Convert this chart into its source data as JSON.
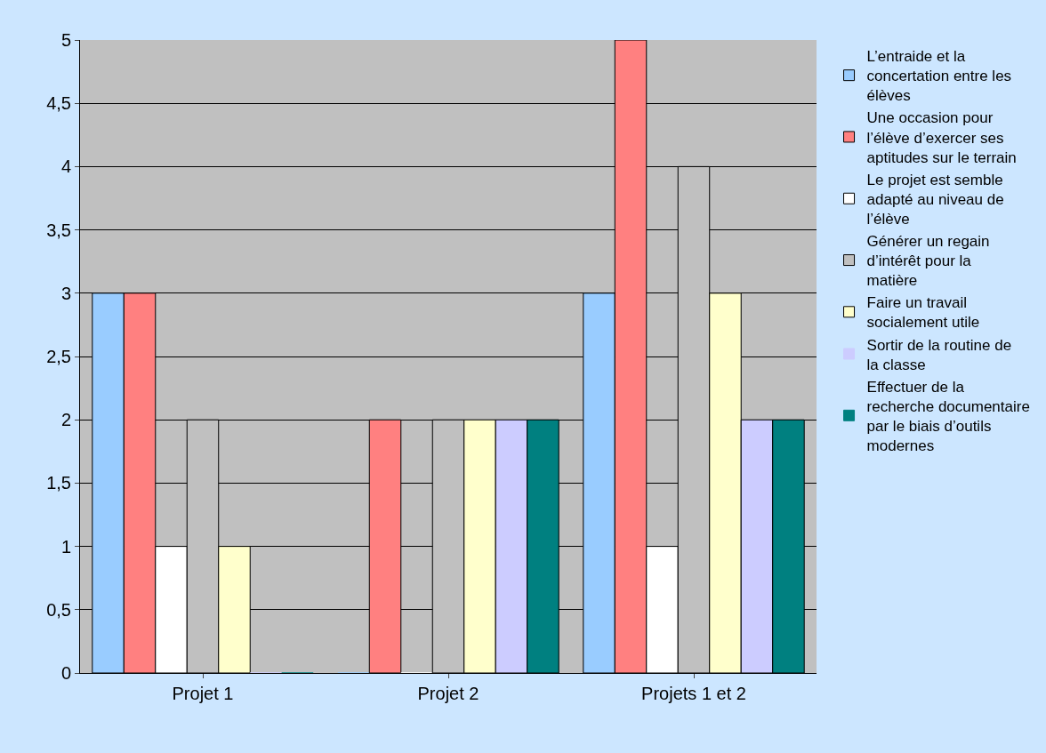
{
  "chart_data": {
    "type": "bar",
    "categories": [
      "Projet 1",
      "Projet 2",
      "Projets 1 et 2"
    ],
    "series": [
      {
        "name": "L’entraide et la concertation entre les élèves",
        "color": "#99ccff",
        "values": [
          3,
          0,
          3
        ]
      },
      {
        "name": "Une occasion pour l’élève d’exercer ses aptitudes sur le terrain",
        "color": "#ff8080",
        "values": [
          3,
          2,
          5
        ]
      },
      {
        "name": "Le projet est semble adapté au niveau de l’élève",
        "color": "#ffffff",
        "values": [
          1,
          0,
          1
        ]
      },
      {
        "name": "Générer un regain d’intérêt pour la matière",
        "color": "#c0c0c0",
        "values": [
          2,
          2,
          4
        ]
      },
      {
        "name": "Faire un travail socialement utile",
        "color": "#ffffcc",
        "values": [
          1,
          2,
          3
        ]
      },
      {
        "name": "Sortir de la routine de la classe",
        "color": "#ccccff",
        "values": [
          0,
          2,
          2
        ]
      },
      {
        "name": "Effectuer de la recherche documentaire par le biais d’outils modernes",
        "color": "#008080",
        "values": [
          0,
          2,
          2
        ]
      }
    ],
    "ylim": [
      0,
      5
    ],
    "yticks": [
      0,
      {
        "value": 0.5,
        "label": "0,5"
      },
      1,
      {
        "value": 1.5,
        "label": "1,5"
      },
      2,
      {
        "value": 2.5,
        "label": "2,5"
      },
      3,
      {
        "value": 3.5,
        "label": "3,5"
      },
      4,
      {
        "value": 4.5,
        "label": "4,5"
      },
      5
    ],
    "grid": "y",
    "legend": "right"
  }
}
